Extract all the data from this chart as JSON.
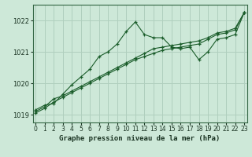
{
  "xlabel": "Graphe pression niveau de la mer (hPa)",
  "bg_color": "#cde8d8",
  "grid_color": "#b0cfbe",
  "line_color": "#1a5c2a",
  "ylim": [
    1018.75,
    1022.5
  ],
  "xlim": [
    -0.3,
    23.3
  ],
  "yticks": [
    1019,
    1020,
    1021,
    1022
  ],
  "xtick_labels": [
    "0",
    "1",
    "2",
    "3",
    "4",
    "5",
    "6",
    "7",
    "8",
    "9",
    "10",
    "11",
    "12",
    "13",
    "14",
    "15",
    "16",
    "17",
    "18",
    "19",
    "20",
    "21",
    "22",
    "23"
  ],
  "series": [
    [
      1019.15,
      1019.3,
      1019.35,
      1019.65,
      1019.95,
      1020.2,
      1020.45,
      1020.85,
      1021.0,
      1021.25,
      1021.65,
      1021.95,
      1021.55,
      1021.45,
      1021.45,
      1021.15,
      1021.1,
      1021.15,
      1020.75,
      1021.0,
      1021.4,
      1021.45,
      1021.55,
      1022.25
    ],
    [
      1019.1,
      1019.25,
      1019.5,
      1019.6,
      1019.75,
      1019.9,
      1020.05,
      1020.2,
      1020.35,
      1020.5,
      1020.65,
      1020.8,
      1020.95,
      1021.1,
      1021.15,
      1021.2,
      1021.25,
      1021.3,
      1021.35,
      1021.45,
      1021.6,
      1021.65,
      1021.75,
      1022.25
    ],
    [
      1019.05,
      1019.2,
      1019.4,
      1019.55,
      1019.7,
      1019.85,
      1020.0,
      1020.15,
      1020.3,
      1020.45,
      1020.6,
      1020.75,
      1020.85,
      1020.95,
      1021.05,
      1021.1,
      1021.15,
      1021.2,
      1021.25,
      1021.4,
      1021.55,
      1021.6,
      1021.7,
      1022.25
    ]
  ]
}
